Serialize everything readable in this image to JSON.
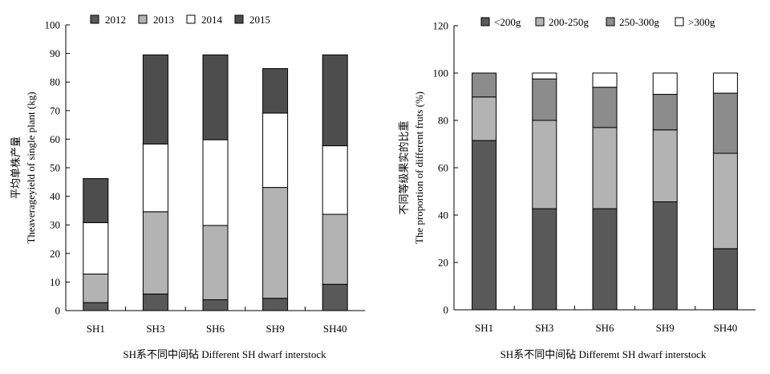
{
  "chart_data": [
    {
      "type": "bar",
      "stacked": true,
      "categories": [
        "SH1",
        "SH3",
        "SH6",
        "SH9",
        "SH40"
      ],
      "series": [
        {
          "name": "2012",
          "values": [
            2.8,
            5.8,
            3.8,
            4.3,
            9.2
          ],
          "color": "#595959"
        },
        {
          "name": "2013",
          "values": [
            10.0,
            28.8,
            26.0,
            38.8,
            24.5
          ],
          "color": "#b3b3b3"
        },
        {
          "name": "2014",
          "values": [
            18.0,
            23.7,
            30.0,
            26.0,
            24.0
          ],
          "color": "#ffffff"
        },
        {
          "name": "2015",
          "values": [
            15.4,
            31.2,
            29.7,
            15.6,
            31.8
          ],
          "color": "#4d4d4d"
        }
      ],
      "ylim": [
        0,
        100
      ],
      "yticks": [
        0,
        10,
        20,
        30,
        40,
        50,
        60,
        70,
        80,
        90,
        100
      ],
      "ylabel_cn": "平均单株产量",
      "ylabel_en": "Theaverageyield of single plant (kg)",
      "xlabel": "SH系不同中间砧 Different SH dwarf interstock",
      "legend_position": "top"
    },
    {
      "type": "bar",
      "stacked": true,
      "categories": [
        "SH1",
        "SH3",
        "SH6",
        "SH9",
        "SH40"
      ],
      "series": [
        {
          "name": "<200g",
          "values": [
            71.5,
            42.7,
            42.7,
            45.6,
            25.8
          ],
          "color": "#595959"
        },
        {
          "name": "200-250g",
          "values": [
            18.4,
            37.3,
            34.3,
            30.4,
            40.3
          ],
          "color": "#b3b3b3"
        },
        {
          "name": "250-300g",
          "values": [
            10.1,
            17.5,
            17.0,
            15.0,
            25.4
          ],
          "color": "#8c8c8c"
        },
        {
          "name": ">300g",
          "values": [
            0.0,
            2.5,
            6.0,
            9.0,
            8.5
          ],
          "color": "#ffffff"
        }
      ],
      "ylim": [
        0,
        120
      ],
      "yticks": [
        0,
        20,
        40,
        60,
        80,
        100,
        120
      ],
      "ylabel_cn": "不同等级果实的比重",
      "ylabel_en": "The proportion of different fruts (%)",
      "xlabel": "SH系不同中间砧 Differemt SH dwarf interstock",
      "legend_position": "top"
    }
  ]
}
